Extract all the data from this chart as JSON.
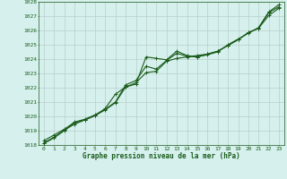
{
  "xlabel": "Graphe pression niveau de la mer (hPa)",
  "ylim": [
    1018,
    1028
  ],
  "xlim": [
    -0.5,
    23.5
  ],
  "yticks": [
    1018,
    1019,
    1020,
    1021,
    1022,
    1023,
    1024,
    1025,
    1026,
    1027,
    1028
  ],
  "xticks": [
    0,
    1,
    2,
    3,
    4,
    5,
    6,
    7,
    8,
    9,
    10,
    11,
    12,
    13,
    14,
    15,
    16,
    17,
    18,
    19,
    20,
    21,
    22,
    23
  ],
  "background_color": "#d6f0ee",
  "grid_color": "#b8ceca",
  "line_color": "#1a5c1a",
  "series1": [
    1018.3,
    1018.7,
    1019.1,
    1019.6,
    1019.8,
    1020.1,
    1020.5,
    1021.0,
    1022.2,
    1022.5,
    1023.5,
    1023.3,
    1023.9,
    1024.4,
    1024.2,
    1024.15,
    1024.3,
    1024.5,
    1025.0,
    1025.4,
    1025.8,
    1026.2,
    1027.3,
    1027.8
  ],
  "series2": [
    1018.1,
    1018.5,
    1019.0,
    1019.55,
    1019.75,
    1020.05,
    1020.55,
    1021.55,
    1022.05,
    1022.25,
    1024.15,
    1024.05,
    1023.95,
    1024.55,
    1024.25,
    1024.15,
    1024.35,
    1024.55,
    1024.95,
    1025.35,
    1025.85,
    1026.15,
    1027.25,
    1027.65
  ],
  "series3": [
    1018.15,
    1018.55,
    1019.05,
    1019.45,
    1019.75,
    1020.05,
    1020.45,
    1020.95,
    1022.05,
    1022.35,
    1023.05,
    1023.15,
    1023.85,
    1024.05,
    1024.15,
    1024.25,
    1024.35,
    1024.55,
    1024.95,
    1025.35,
    1025.85,
    1026.15,
    1027.05,
    1027.55
  ],
  "marker": "+",
  "markersize": 3,
  "linewidth": 0.8
}
